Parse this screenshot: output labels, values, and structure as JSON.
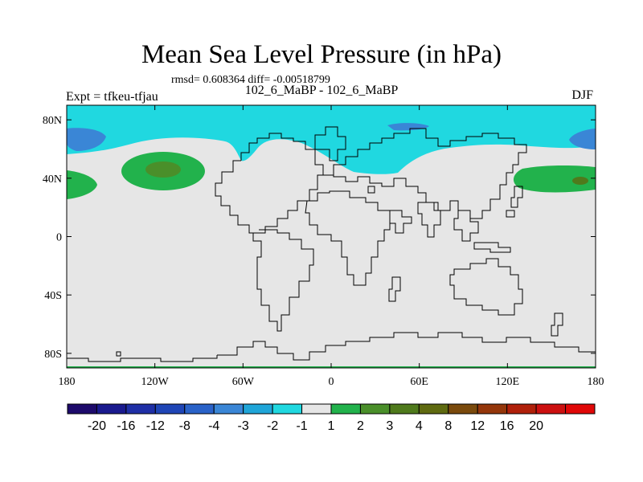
{
  "header": {
    "title": "Mean Sea Level Pressure (in hPa)",
    "stats": "rmsd= 0.608364 diff= -0.00518799",
    "subtitle": "102_6_MaBP - 102_6_MaBP",
    "left_label": "Expt = tfkeu-tfjau",
    "right_label": "DJF"
  },
  "map": {
    "background_color": "#e6e6e6",
    "lat_range": [
      -90,
      90
    ],
    "lon_range": [
      -180,
      180
    ],
    "y_ticks": [
      {
        "label": "80N",
        "lat": 80
      },
      {
        "label": "40N",
        "lat": 40
      },
      {
        "label": "0",
        "lat": 0
      },
      {
        "label": "40S",
        "lat": -40
      },
      {
        "label": "80S",
        "lat": -80
      }
    ],
    "x_ticks": [
      {
        "label": "180",
        "lon": -180
      },
      {
        "label": "120W",
        "lon": -120
      },
      {
        "label": "60W",
        "lon": -60
      },
      {
        "label": "0",
        "lon": 0
      },
      {
        "label": "60E",
        "lon": 60
      },
      {
        "label": "120E",
        "lon": 120
      },
      {
        "label": "180",
        "lon": 180
      }
    ]
  },
  "colorbar": {
    "colors": [
      "#1d0a6b",
      "#1a1a8e",
      "#1f2fa6",
      "#1f45b6",
      "#2a62c8",
      "#3a86d6",
      "#1fa5d8",
      "#20d8e0",
      "#e6e6e6",
      "#22b24c",
      "#4a8f2a",
      "#4f7a1c",
      "#5f6a10",
      "#7a4a0c",
      "#94360a",
      "#b0200a",
      "#cc1010",
      "#e00808"
    ],
    "labels": [
      "-20",
      "-16",
      "-12",
      "-8",
      "-4",
      "-3",
      "-2",
      "-1",
      "1",
      "2",
      "3",
      "4",
      "8",
      "12",
      "16",
      "20"
    ]
  }
}
